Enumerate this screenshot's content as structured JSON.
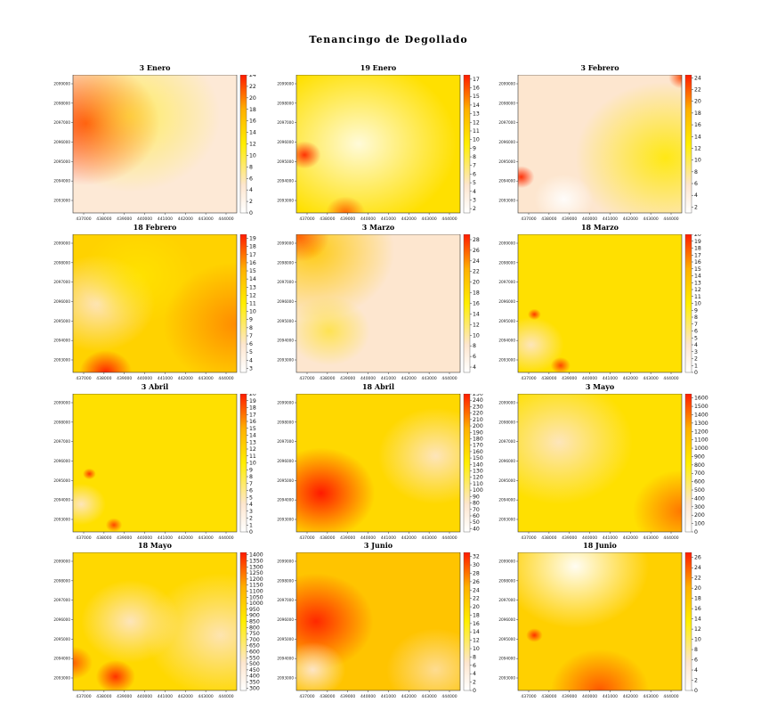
{
  "figure_title": "Tenancingo de Degollado",
  "chart_data": [
    {
      "type": "heatmap",
      "title": "3 Enero",
      "x_ticks": [
        "437000",
        "438000",
        "439000",
        "440000",
        "441000",
        "442000",
        "443000",
        "444000"
      ],
      "y_ticks": [
        "2093000",
        "2094000",
        "2095000",
        "2096000",
        "2097000",
        "2098000",
        "2099000"
      ],
      "colorbar_ticks": [
        0,
        2,
        4,
        6,
        8,
        10,
        12,
        14,
        16,
        18,
        20,
        22,
        24
      ],
      "colorbar_range": [
        0,
        24
      ],
      "hotspots": [
        {
          "x": 0.1,
          "y": 0.35,
          "value": 24
        },
        {
          "x": 0.05,
          "y": 0.05,
          "value": 22
        }
      ]
    },
    {
      "type": "heatmap",
      "title": "19 Enero",
      "x_ticks": [
        "437000",
        "438000",
        "439000",
        "440000",
        "441000",
        "442000",
        "443000",
        "444000"
      ],
      "y_ticks": [
        "2093000",
        "2094000",
        "2095000",
        "2096000",
        "2097000",
        "2098000",
        "2099000"
      ],
      "colorbar_ticks": [
        2,
        3,
        4,
        5,
        6,
        7,
        8,
        9,
        10,
        11,
        12,
        13,
        14,
        15,
        16,
        17
      ],
      "colorbar_range": [
        1.5,
        17.5
      ],
      "hotspots": [
        {
          "x": 0.08,
          "y": 0.58,
          "value": 17
        },
        {
          "x": 0.3,
          "y": 1.0,
          "value": 16
        }
      ]
    },
    {
      "type": "heatmap",
      "title": "3 Febrero",
      "x_ticks": [
        "437000",
        "438000",
        "439000",
        "440000",
        "441000",
        "442000",
        "443000",
        "444000"
      ],
      "y_ticks": [
        "2093000",
        "2094000",
        "2095000",
        "2096000",
        "2097000",
        "2098000",
        "2099000"
      ],
      "colorbar_ticks": [
        2,
        4,
        6,
        8,
        10,
        12,
        14,
        16,
        18,
        20,
        22,
        24
      ],
      "colorbar_range": [
        1,
        24.5
      ],
      "hotspots": [
        {
          "x": 0.02,
          "y": 0.74,
          "value": 24
        },
        {
          "x": 1.0,
          "y": 0.02,
          "value": 24
        }
      ]
    },
    {
      "type": "heatmap",
      "title": "18 Febrero",
      "x_ticks": [
        "437000",
        "438000",
        "439000",
        "440000",
        "441000",
        "442000",
        "443000",
        "444000"
      ],
      "y_ticks": [
        "2093000",
        "2094000",
        "2095000",
        "2096000",
        "2097000",
        "2098000",
        "2099000"
      ],
      "colorbar_ticks": [
        3,
        4,
        5,
        6,
        7,
        8,
        9,
        10,
        11,
        12,
        13,
        14,
        15,
        16,
        17,
        18,
        19
      ],
      "colorbar_range": [
        2.5,
        19.5
      ],
      "hotspots": [
        {
          "x": 0.2,
          "y": 1.0,
          "value": 18
        }
      ]
    },
    {
      "type": "heatmap",
      "title": "3 Marzo",
      "x_ticks": [
        "437000",
        "438000",
        "439000",
        "440000",
        "441000",
        "442000",
        "443000",
        "444000"
      ],
      "y_ticks": [
        "2093000",
        "2094000",
        "2095000",
        "2096000",
        "2097000",
        "2098000",
        "2099000"
      ],
      "colorbar_ticks": [
        4,
        6,
        8,
        10,
        12,
        14,
        16,
        18,
        20,
        22,
        24,
        26,
        28
      ],
      "colorbar_range": [
        3,
        29
      ],
      "hotspots": [
        {
          "x": 0.03,
          "y": 0.05,
          "value": 27
        }
      ]
    },
    {
      "type": "heatmap",
      "title": "18 Marzo",
      "x_ticks": [
        "437000",
        "438000",
        "439000",
        "440000",
        "441000",
        "442000",
        "443000",
        "444000"
      ],
      "y_ticks": [
        "2093000",
        "2094000",
        "2095000",
        "2096000",
        "2097000",
        "2098000",
        "2099000"
      ],
      "colorbar_ticks": [
        0,
        1,
        2,
        3,
        4,
        5,
        6,
        7,
        8,
        9,
        10,
        11,
        12,
        13,
        14,
        15,
        16,
        17,
        18,
        19,
        20
      ],
      "colorbar_range": [
        0,
        20
      ],
      "hotspots": [
        {
          "x": 0.1,
          "y": 0.58,
          "value": 17
        },
        {
          "x": 0.26,
          "y": 0.95,
          "value": 16
        }
      ]
    },
    {
      "type": "heatmap",
      "title": "3 Abril",
      "x_ticks": [
        "437000",
        "438000",
        "439000",
        "440000",
        "441000",
        "442000",
        "443000",
        "444000"
      ],
      "y_ticks": [
        "2093000",
        "2094000",
        "2095000",
        "2096000",
        "2097000",
        "2098000",
        "2099000"
      ],
      "colorbar_ticks": [
        0,
        1,
        2,
        3,
        4,
        5,
        6,
        7,
        8,
        9,
        10,
        11,
        12,
        13,
        14,
        15,
        16,
        17,
        18,
        19,
        20
      ],
      "colorbar_range": [
        0,
        20
      ],
      "hotspots": [
        {
          "x": 0.1,
          "y": 0.58,
          "value": 18
        },
        {
          "x": 0.25,
          "y": 0.95,
          "value": 16
        }
      ]
    },
    {
      "type": "heatmap",
      "title": "18 Abril",
      "x_ticks": [
        "437000",
        "438000",
        "439000",
        "440000",
        "441000",
        "442000",
        "443000",
        "444000"
      ],
      "y_ticks": [
        "2093000",
        "2094000",
        "2095000",
        "2096000",
        "2097000",
        "2098000",
        "2099000"
      ],
      "colorbar_ticks": [
        40,
        50,
        60,
        70,
        80,
        90,
        100,
        110,
        120,
        130,
        140,
        150,
        160,
        170,
        180,
        190,
        200,
        210,
        220,
        230,
        240,
        250
      ],
      "colorbar_range": [
        35,
        250
      ],
      "hotspots": [
        {
          "x": 0.15,
          "y": 0.72,
          "value": 250
        }
      ]
    },
    {
      "type": "heatmap",
      "title": "3 Mayo",
      "x_ticks": [
        "437000",
        "438000",
        "439000",
        "440000",
        "441000",
        "442000",
        "443000",
        "444000"
      ],
      "y_ticks": [
        "2093000",
        "2094000",
        "2095000",
        "2096000",
        "2097000",
        "2098000",
        "2099000"
      ],
      "colorbar_ticks": [
        0,
        100,
        200,
        300,
        400,
        500,
        600,
        700,
        800,
        900,
        1000,
        1100,
        1200,
        1300,
        1400,
        1500,
        1600
      ],
      "colorbar_range": [
        0,
        1650
      ],
      "hotspots": [
        {
          "x": 1.0,
          "y": 0.85,
          "value": 1600
        }
      ]
    },
    {
      "type": "heatmap",
      "title": "18 Mayo",
      "x_ticks": [
        "437000",
        "438000",
        "439000",
        "440000",
        "441000",
        "442000",
        "443000",
        "444000"
      ],
      "y_ticks": [
        "2093000",
        "2094000",
        "2095000",
        "2096000",
        "2097000",
        "2098000",
        "2099000"
      ],
      "colorbar_ticks": [
        300,
        350,
        400,
        450,
        500,
        550,
        600,
        650,
        700,
        750,
        800,
        850,
        900,
        950,
        1000,
        1050,
        1100,
        1150,
        1200,
        1250,
        1300,
        1350,
        1400
      ],
      "colorbar_range": [
        280,
        1420
      ],
      "hotspots": [
        {
          "x": 0.26,
          "y": 0.9,
          "value": 1380
        },
        {
          "x": 0.0,
          "y": 0.8,
          "value": 1300
        }
      ]
    },
    {
      "type": "heatmap",
      "title": "3 Junio",
      "x_ticks": [
        "437000",
        "438000",
        "439000",
        "440000",
        "441000",
        "442000",
        "443000",
        "444000"
      ],
      "y_ticks": [
        "2093000",
        "2094000",
        "2095000",
        "2096000",
        "2097000",
        "2098000",
        "2099000"
      ],
      "colorbar_ticks": [
        0,
        2,
        4,
        6,
        8,
        10,
        12,
        14,
        16,
        18,
        20,
        22,
        24,
        26,
        28,
        30,
        32
      ],
      "colorbar_range": [
        0,
        33
      ],
      "hotspots": [
        {
          "x": 0.12,
          "y": 0.5,
          "value": 32
        }
      ]
    },
    {
      "type": "heatmap",
      "title": "18 Junio",
      "x_ticks": [
        "437000",
        "438000",
        "439000",
        "440000",
        "441000",
        "442000",
        "443000",
        "444000"
      ],
      "y_ticks": [
        "2093000",
        "2094000",
        "2095000",
        "2096000",
        "2097000",
        "2098000",
        "2099000"
      ],
      "colorbar_ticks": [
        0,
        2,
        4,
        6,
        8,
        10,
        12,
        14,
        16,
        18,
        20,
        22,
        24,
        26
      ],
      "colorbar_range": [
        0,
        27
      ],
      "hotspots": [
        {
          "x": 0.1,
          "y": 0.6,
          "value": 26
        },
        {
          "x": 0.4,
          "y": 0.95,
          "value": 22
        }
      ]
    }
  ]
}
